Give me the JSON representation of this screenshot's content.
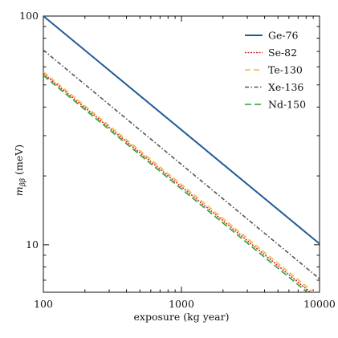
{
  "chart_data": {
    "type": "line",
    "xlabel": "exposure (kg year)",
    "ylabel": "m_ββ (meV)",
    "xscale": "log",
    "yscale": "log",
    "xlim": [
      100,
      10000
    ],
    "ylim": [
      6.2,
      100
    ],
    "x_ticks": [
      "100",
      "1000",
      "10000"
    ],
    "x_tick_values": [
      100,
      1000,
      10000
    ],
    "y_ticks": [
      "10",
      "100"
    ],
    "y_tick_values": [
      10,
      100
    ],
    "grid": false,
    "legend_position": "top-right",
    "series": [
      {
        "name": "Ge-76",
        "x": [
          100,
          10000
        ],
        "y": [
          100,
          10.1
        ],
        "color": "#1f5a96",
        "style": "solid"
      },
      {
        "name": "Se-82",
        "x": [
          100,
          10000
        ],
        "y": [
          56,
          5.75
        ],
        "color": "#d62728",
        "style": "dotted"
      },
      {
        "name": "Te-130",
        "x": [
          100,
          10000
        ],
        "y": [
          57,
          5.9
        ],
        "color": "#f5b942",
        "style": "dashed"
      },
      {
        "name": "Xe-136",
        "x": [
          100,
          10000
        ],
        "y": [
          71,
          7.1
        ],
        "color": "#555555",
        "style": "dashdot"
      },
      {
        "name": "Nd-150",
        "x": [
          100,
          10000
        ],
        "y": [
          55,
          5.6
        ],
        "color": "#2ca02c",
        "style": "longdash"
      }
    ]
  }
}
